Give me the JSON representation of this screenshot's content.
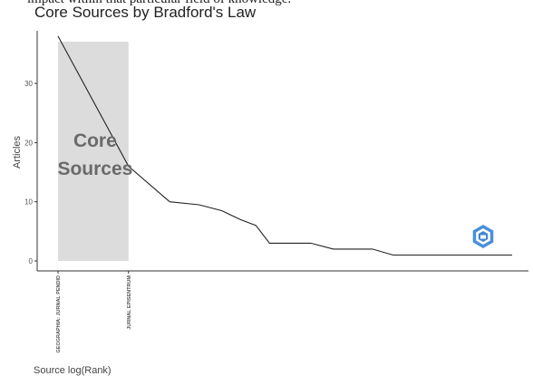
{
  "caption_fragment": "impact within that particular field of knowledge.",
  "chart_data": {
    "type": "line",
    "title": "Core Sources by Bradford's Law",
    "xlabel": "Source log(Rank)",
    "ylabel": "Articles",
    "x_scale": "log",
    "yticks": [
      0,
      10,
      20,
      30
    ],
    "ylim": [
      -1.5,
      38
    ],
    "xlim": [
      1,
      87
    ],
    "grid": false,
    "core_zone": {
      "label_line1": "Core",
      "label_line2": "Sources",
      "x_range": [
        1,
        2
      ]
    },
    "labeled_ranks": [
      {
        "rank": 1,
        "label": "GEOGRAPHIA: JURNAL PENDID"
      },
      {
        "rank": 2,
        "label": "JURNAL EPISENTRUM"
      }
    ],
    "series": [
      {
        "x": [
          1,
          2,
          3,
          4,
          5,
          6,
          7,
          8,
          10,
          12,
          15,
          18,
          22,
          27,
          34,
          87
        ],
        "y": [
          38,
          16,
          10,
          9.5,
          8.5,
          7,
          6,
          3,
          3,
          3,
          2,
          2,
          2,
          1,
          1,
          1
        ]
      }
    ],
    "line_color": "#222222",
    "zone_color": "#dcdcdc",
    "watermark_icon": "shield-hexagon-icon"
  }
}
